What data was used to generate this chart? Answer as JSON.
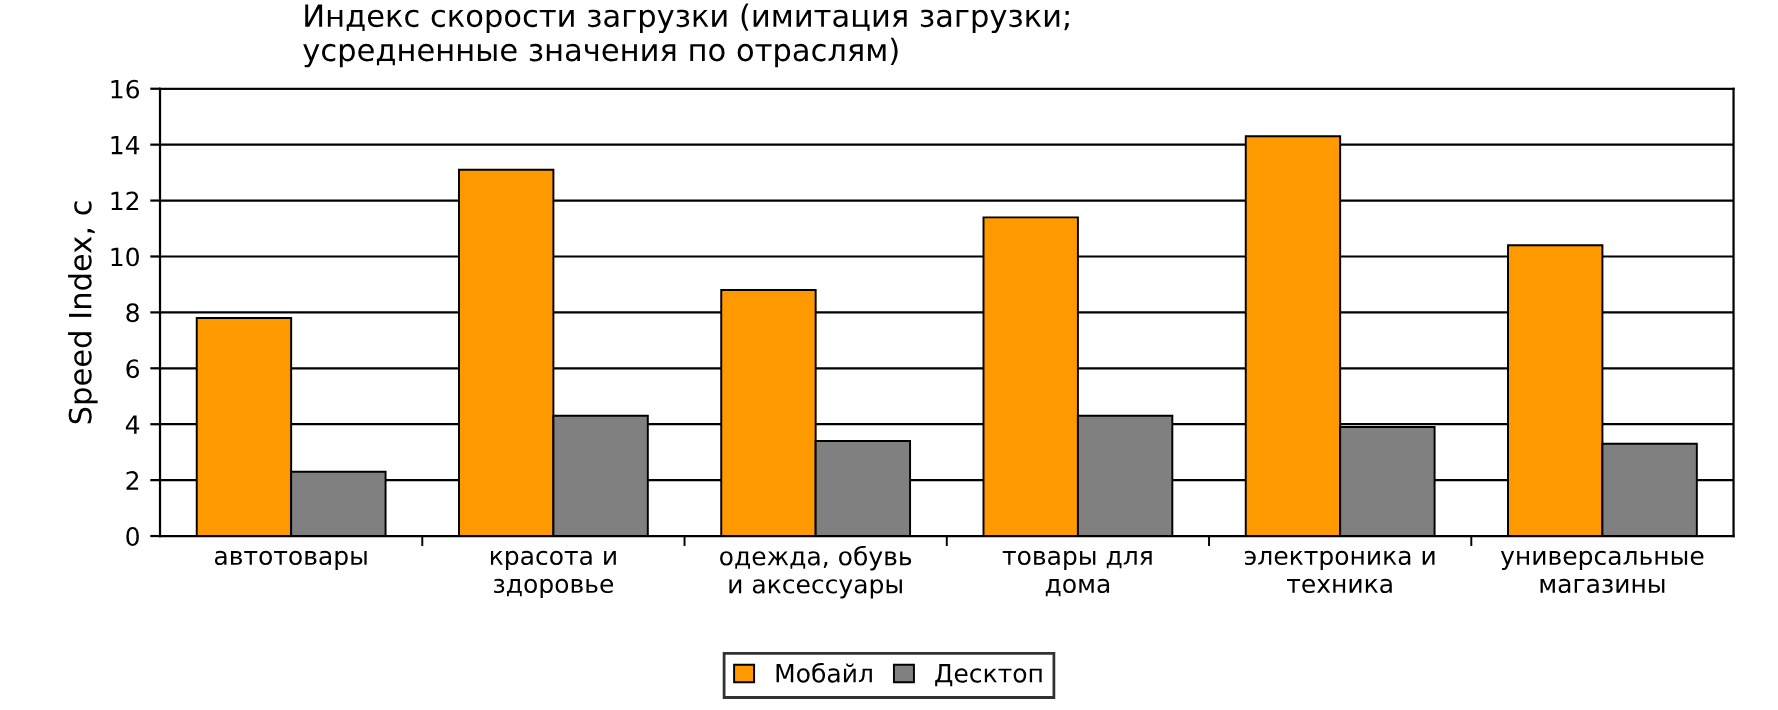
{
  "chart_data": {
    "type": "bar",
    "title": "Индекс скорости загрузки (имитация загрузки;\nусредненные значения по отраслям)",
    "ylabel": "Speed Index, с",
    "categories": [
      "автотовары",
      "красота и\nздоровье",
      "одежда, обувь\nи аксессуары",
      "товары для\nдома",
      "электроника и\nтехника",
      "универсальные\nмагазины"
    ],
    "series": [
      {
        "name": "Мобайл",
        "color": "#ff9900",
        "values": [
          7.8,
          13.1,
          8.8,
          11.4,
          14.3,
          10.4
        ]
      },
      {
        "name": "Десктоп",
        "color": "#808080",
        "values": [
          2.3,
          4.3,
          3.4,
          4.3,
          3.9,
          3.3
        ]
      }
    ],
    "ylim": [
      0,
      16
    ],
    "yticks": [
      0,
      2,
      4,
      6,
      8,
      10,
      12,
      14,
      16
    ],
    "grid": "y",
    "legend": "bottom"
  }
}
